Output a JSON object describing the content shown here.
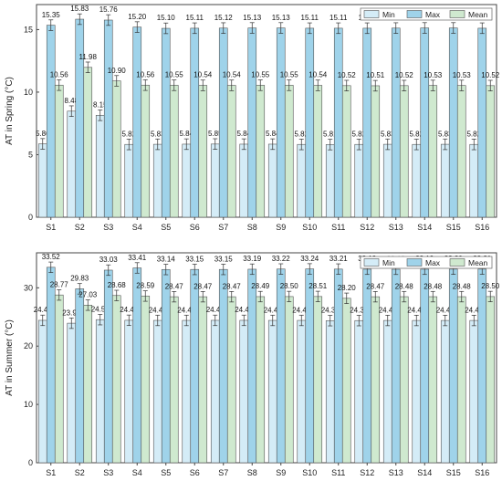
{
  "chart_data": [
    {
      "type": "bar",
      "ylabel": "AT in Spring (°C)",
      "ylim": [
        0,
        17
      ],
      "yticks": [
        0,
        5,
        10,
        15
      ],
      "categories": [
        "S1",
        "S2",
        "S3",
        "S4",
        "S5",
        "S6",
        "S7",
        "S8",
        "S9",
        "S10",
        "S11",
        "S12",
        "S13",
        "S14",
        "S15",
        "S16"
      ],
      "legend_position": "top-right",
      "series": [
        {
          "name": "Min",
          "color": "#d4ecf7",
          "values": [
            5.86,
            8.48,
            8.15,
            5.82,
            5.83,
            5.84,
            5.85,
            5.84,
            5.84,
            5.82,
            5.81,
            5.82,
            5.83,
            5.82,
            5.83,
            5.82
          ]
        },
        {
          "name": "Max",
          "color": "#9fd3ea",
          "values": [
            15.35,
            15.83,
            15.76,
            15.2,
            15.1,
            15.11,
            15.12,
            15.13,
            15.13,
            15.11,
            15.11,
            15.11,
            15.12,
            15.13,
            15.13,
            15.11
          ]
        },
        {
          "name": "Mean",
          "color": "#cfe9cf",
          "values": [
            10.56,
            11.98,
            10.9,
            10.56,
            10.55,
            10.54,
            10.54,
            10.55,
            10.55,
            10.54,
            10.52,
            10.51,
            10.52,
            10.53,
            10.53,
            10.52
          ]
        }
      ]
    },
    {
      "type": "bar",
      "ylabel": "AT in Summer (°C)",
      "ylim": [
        0,
        36
      ],
      "yticks": [
        0,
        10,
        20,
        30
      ],
      "categories": [
        "S1",
        "S2",
        "S3",
        "S4",
        "S5",
        "S6",
        "S7",
        "S8",
        "S9",
        "S10",
        "S11",
        "S12",
        "S13",
        "S14",
        "S15",
        "S16"
      ],
      "legend_position": "top-right",
      "series": [
        {
          "name": "Min",
          "color": "#d4ecf7",
          "values": [
            24.42,
            23.93,
            24.54,
            24.43,
            24.41,
            24.41,
            24.42,
            24.42,
            24.41,
            24.41,
            24.37,
            24.38,
            24.4,
            24.4,
            24.4,
            24.4
          ]
        },
        {
          "name": "Max",
          "color": "#9fd3ea",
          "values": [
            33.52,
            29.83,
            33.03,
            33.41,
            33.14,
            33.15,
            33.15,
            33.19,
            33.22,
            33.24,
            33.21,
            33.19,
            33.18,
            33.19,
            33.2,
            33.21
          ]
        },
        {
          "name": "Mean",
          "color": "#cfe9cf",
          "values": [
            28.77,
            27.03,
            28.68,
            28.59,
            28.47,
            28.47,
            28.47,
            28.49,
            28.5,
            28.51,
            28.2,
            28.47,
            28.48,
            28.48,
            28.48,
            28.5
          ]
        }
      ]
    }
  ]
}
